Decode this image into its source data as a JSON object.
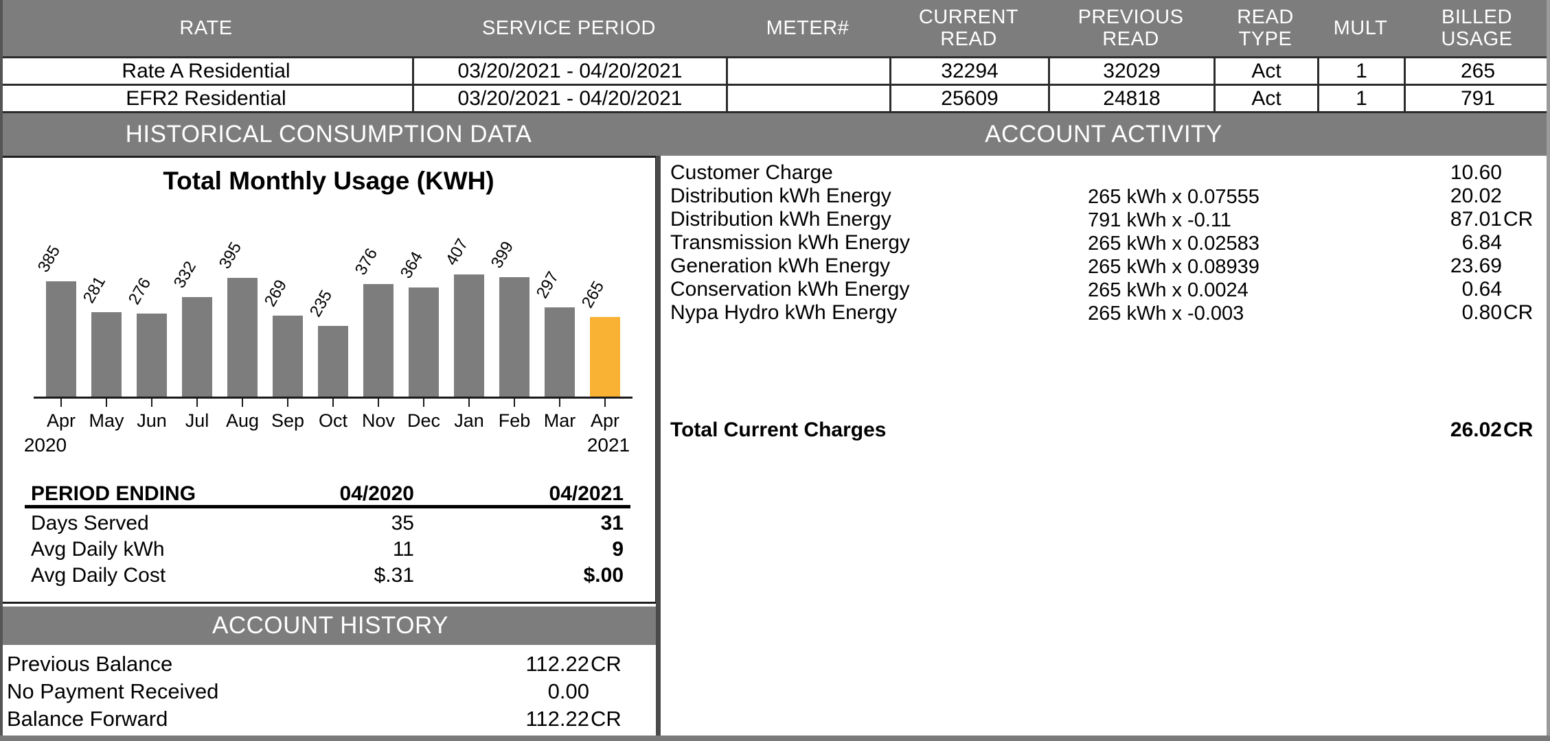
{
  "meter_table": {
    "headers": [
      "RATE",
      "SERVICE PERIOD",
      "METER#",
      "CURRENT\nREAD",
      "PREVIOUS\nREAD",
      "READ\nTYPE",
      "MULT",
      "BILLED\nUSAGE"
    ],
    "rows": [
      [
        "Rate A Residential",
        "03/20/2021 - 04/20/2021",
        "",
        "32294",
        "32029",
        "Act",
        "1",
        "265"
      ],
      [
        "EFR2 Residential",
        "03/20/2021 - 04/20/2021",
        "",
        "25609",
        "24818",
        "Act",
        "1",
        "791"
      ]
    ]
  },
  "section_titles": {
    "historical": "HISTORICAL CONSUMPTION DATA",
    "activity": "ACCOUNT ACTIVITY",
    "history": "ACCOUNT HISTORY"
  },
  "chart_data": {
    "type": "bar",
    "title": "Total Monthly Usage (KWH)",
    "categories": [
      "Apr",
      "May",
      "Jun",
      "Jul",
      "Aug",
      "Sep",
      "Oct",
      "Nov",
      "Dec",
      "Jan",
      "Feb",
      "Mar",
      "Apr"
    ],
    "values": [
      385,
      281,
      276,
      332,
      395,
      269,
      235,
      376,
      364,
      407,
      399,
      297,
      265
    ],
    "year_start_label": "2020",
    "year_end_label": "2021",
    "bar_color": "#7d7d7d",
    "highlight_color": "#F9B233",
    "highlight_index": 12,
    "ylim": [
      0,
      430
    ],
    "grid": false,
    "legend_position": "none",
    "value_label_style": "rotated above bars"
  },
  "period_table": {
    "header": [
      "PERIOD ENDING",
      "04/2020",
      "04/2021"
    ],
    "rows": [
      {
        "label": "Days Served",
        "v2020": "35",
        "v2021": "31"
      },
      {
        "label": "Avg Daily kWh",
        "v2020": "11",
        "v2021": "9"
      },
      {
        "label": "Avg Daily Cost",
        "v2020": "$.31",
        "v2021": "$.00"
      }
    ]
  },
  "account_activity": {
    "rows": [
      {
        "desc": "Customer Charge",
        "calc": "",
        "amount": "10.60",
        "cr": ""
      },
      {
        "desc": "Distribution kWh Energy",
        "calc": "265 kWh x 0.07555",
        "amount": "20.02",
        "cr": ""
      },
      {
        "desc": "Distribution kWh Energy",
        "calc": "791 kWh x -0.11",
        "amount": "87.01",
        "cr": "CR"
      },
      {
        "desc": "Transmission kWh Energy",
        "calc": "265 kWh x 0.02583",
        "amount": "6.84",
        "cr": ""
      },
      {
        "desc": "Generation kWh Energy",
        "calc": "265 kWh x 0.08939",
        "amount": "23.69",
        "cr": ""
      },
      {
        "desc": "Conservation kWh Energy",
        "calc": "265 kWh x 0.0024",
        "amount": "0.64",
        "cr": ""
      },
      {
        "desc": "Nypa Hydro kWh Energy",
        "calc": "265 kWh x -0.003",
        "amount": "0.80",
        "cr": "CR"
      }
    ],
    "total": {
      "desc": "Total Current Charges",
      "amount": "26.02",
      "cr": "CR"
    }
  },
  "account_history": {
    "rows": [
      {
        "label": "Previous Balance",
        "amount": "112.22",
        "cr": "CR"
      },
      {
        "label": "No Payment Received",
        "amount": "0.00",
        "cr": ""
      },
      {
        "label": "Balance Forward",
        "amount": "112.22",
        "cr": "CR"
      }
    ]
  },
  "colors": {
    "band_gray": "#7d7d7d",
    "bar_gray": "#7d7d7d",
    "highlight_orange": "#F9B233",
    "border_dark": "#2b2b2b"
  }
}
